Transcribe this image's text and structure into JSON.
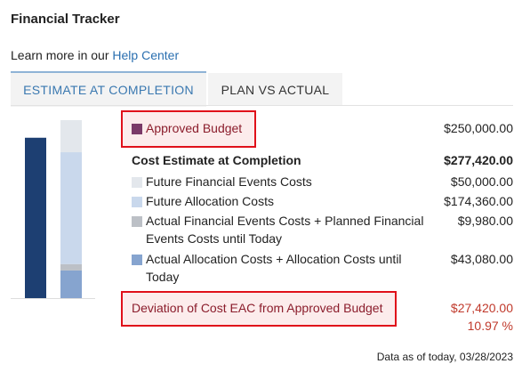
{
  "header": {
    "title": "Financial Tracker",
    "help_text": "Learn more in our",
    "help_link": "Help Center"
  },
  "tabs": [
    "ESTIMATE AT COMPLETION",
    "PLAN VS ACTUAL"
  ],
  "summary": {
    "approved_budget": {
      "label": "Approved Budget",
      "amount": "$250,000.00",
      "color": "#7a3a68",
      "bar_color": "#1d3f72"
    },
    "cost_estimate": {
      "label": "Cost Estimate at Completion",
      "amount": "$277,420.00",
      "items": [
        {
          "label": "Future Financial Events Costs",
          "amount": "$50,000.00",
          "color": "#e3e7ec"
        },
        {
          "label": "Future Allocation Costs",
          "amount": "$174,360.00",
          "color": "#c9d8ec"
        },
        {
          "label": "Actual Financial Events Costs + Planned Financial Events Costs until Today",
          "amount": "$9,980.00",
          "color": "#bcc0c6"
        },
        {
          "label": "Actual Allocation Costs + Allocation Costs until Today",
          "amount": "$43,080.00",
          "color": "#86a4cf"
        }
      ]
    },
    "deviation": {
      "label": "Deviation of Cost EAC from Approved Budget",
      "amount": "$27,420.00",
      "percent": "10.97 %"
    }
  },
  "footer": "Data as of today, 03/28/2023"
}
